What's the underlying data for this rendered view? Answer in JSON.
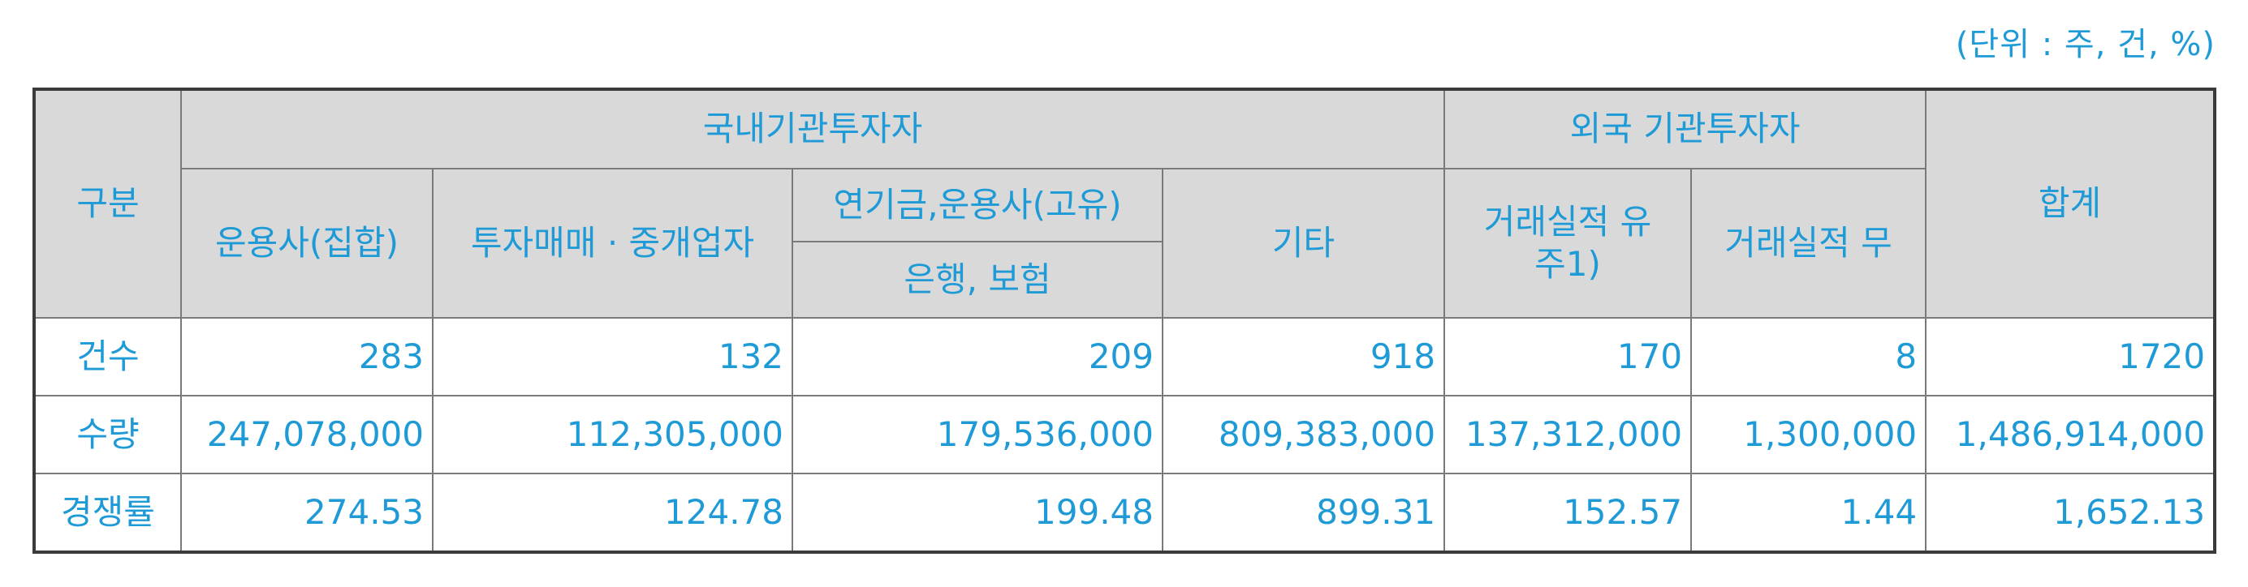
{
  "unit_note": "(단위 : 주, 건, %)",
  "headers": {
    "category": "구분",
    "domestic_group": "국내기관투자자",
    "foreign_group": "외국 기관투자자",
    "total": "합계",
    "columns": {
      "asset_mgmt_collective": "운용사(집합)",
      "dealer_broker": "투자매매 · 중개업자",
      "pension_top": "연기금,운용사(고유)",
      "pension_bottom": "은행, 보험",
      "others": "기타",
      "foreign_with_record_line1": "거래실적 유",
      "foreign_with_record_line2": "주1)",
      "foreign_without_record": "거래실적 무"
    }
  },
  "rows": [
    {
      "label": "건수",
      "values": [
        "283",
        "132",
        "209",
        "918",
        "170",
        "8",
        "1720"
      ]
    },
    {
      "label": "수량",
      "values": [
        "247,078,000",
        "112,305,000",
        "179,536,000",
        "809,383,000",
        "137,312,000",
        "1,300,000",
        "1,486,914,000"
      ]
    },
    {
      "label": "경쟁률",
      "values": [
        "274.53",
        "124.78",
        "199.48",
        "899.31",
        "152.57",
        "1.44",
        "1,652.13"
      ]
    }
  ],
  "colors": {
    "text": "#1e9ad6",
    "header_bg": "#d9d9d9",
    "border": "#7a7a7a"
  }
}
